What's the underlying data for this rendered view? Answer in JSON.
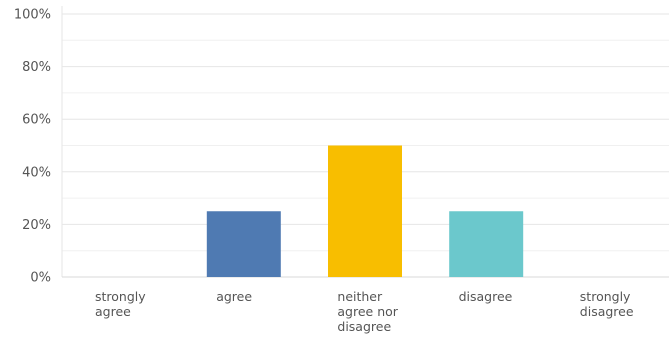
{
  "chart_data": {
    "type": "bar",
    "categories": [
      [
        "strongly",
        "agree"
      ],
      [
        "agree"
      ],
      [
        "neither",
        "agree nor",
        "disagree"
      ],
      [
        "disagree"
      ],
      [
        "strongly",
        "disagree"
      ]
    ],
    "values": [
      0,
      25,
      50,
      25,
      0
    ],
    "bar_colors": [
      "#4f7ab2",
      "#4f7ab2",
      "#f8be00",
      "#6bc8cc",
      "#6bc8cc"
    ],
    "yticks": [
      0,
      20,
      40,
      60,
      80,
      100
    ],
    "ytick_labels": [
      "0%",
      "20%",
      "40%",
      "60%",
      "80%",
      "100%"
    ],
    "ylim": [
      0,
      100
    ],
    "grid_minor": true,
    "title": "",
    "xlabel": "",
    "ylabel": ""
  }
}
